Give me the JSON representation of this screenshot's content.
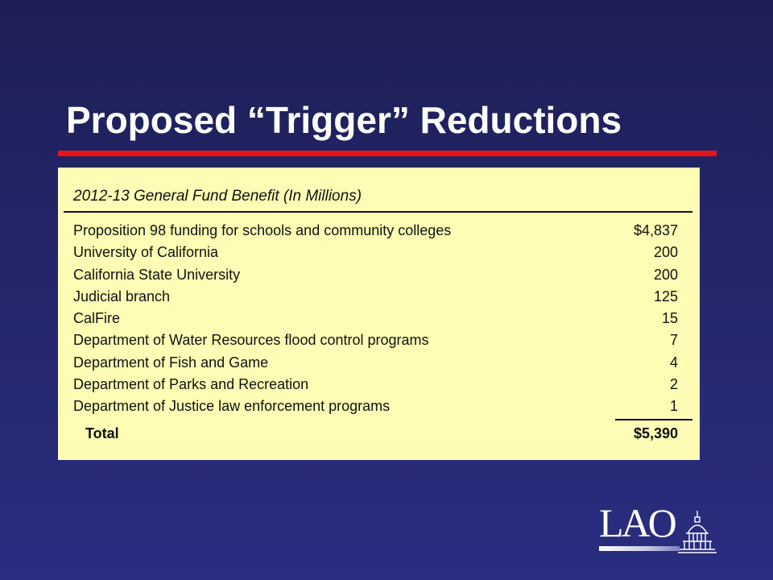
{
  "slide": {
    "title": "Proposed “Trigger” Reductions"
  },
  "table": {
    "caption": "2012-13 General Fund Benefit (In Millions)",
    "rows": [
      {
        "label": "Proposition 98 funding for schools and community colleges",
        "amount": "$4,837"
      },
      {
        "label": "University of California",
        "amount": "200"
      },
      {
        "label": "California State University",
        "amount": "200"
      },
      {
        "label": "Judicial branch",
        "amount": "125"
      },
      {
        "label": "CalFire",
        "amount": "15"
      },
      {
        "label": "Department of Water Resources flood control programs",
        "amount": "7"
      },
      {
        "label": "Department of Fish and Game",
        "amount": "4"
      },
      {
        "label": "Department of Parks and Recreation",
        "amount": "2"
      },
      {
        "label": "Department of Justice law enforcement programs",
        "amount": "1"
      }
    ],
    "total": {
      "label": "Total",
      "amount": "$5,390"
    }
  },
  "logo": {
    "text": "LAO",
    "icon": "capitol-dome-icon"
  },
  "colors": {
    "background": "#23266a",
    "title_rule": "#e8141c",
    "panel": "#fffdb5"
  }
}
